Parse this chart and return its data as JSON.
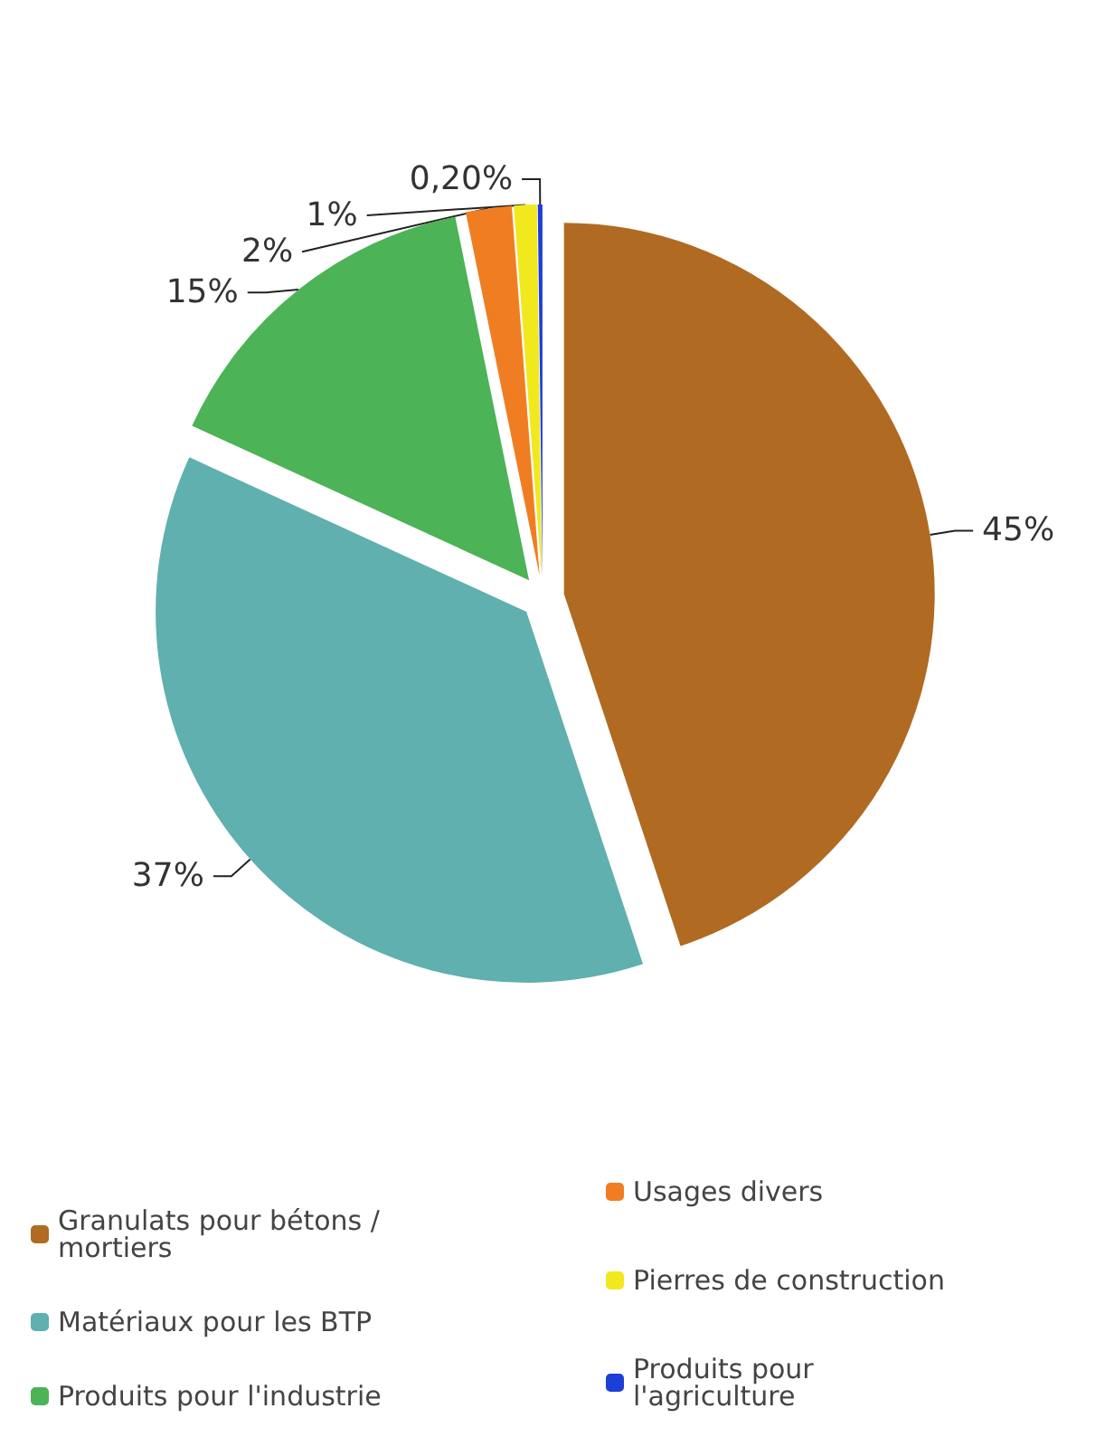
{
  "chart_data": {
    "type": "pie",
    "categories": [
      "Granulats pour bétons / mortiers",
      "Matériaux pour les BTP",
      "Produits pour l'industrie",
      "Usages divers",
      "Pierres de construction",
      "Produits pour l'agriculture"
    ],
    "values": [
      45,
      37,
      15,
      2,
      1,
      0.2
    ],
    "value_labels": [
      "45%",
      "37%",
      "15%",
      "2%",
      "1%",
      "0,20%"
    ],
    "colors": [
      "#b06a22",
      "#5fb0ae",
      "#4cb356",
      "#f07d22",
      "#f2e81e",
      "#1c3fd8"
    ],
    "legend": "bottom"
  }
}
